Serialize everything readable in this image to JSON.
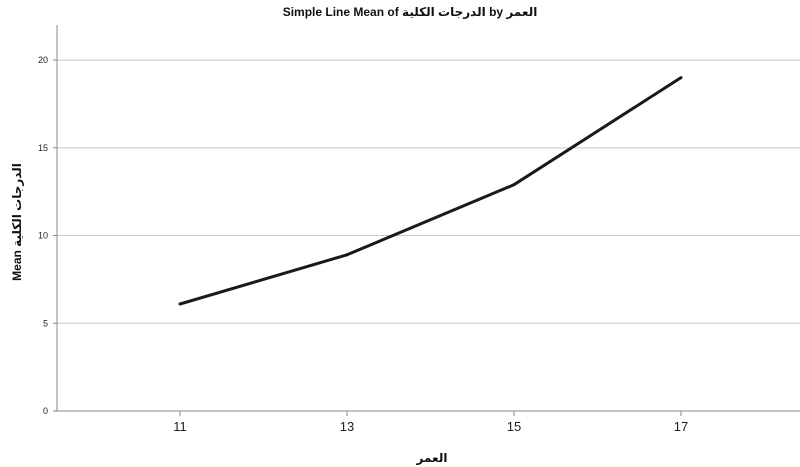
{
  "chart_data": {
    "type": "line",
    "title": "Simple Line Mean of الدرجات الكلية by العمر",
    "xlabel": "العمر",
    "ylabel": "Mean الدرجات الكلية",
    "categories": [
      "11",
      "13",
      "15",
      "17"
    ],
    "series": [
      {
        "values": [
          6.1,
          8.9,
          12.9,
          19.0
        ]
      }
    ],
    "ylim": [
      0,
      22
    ],
    "yticks": [
      0,
      5,
      10,
      15,
      20
    ],
    "grid": true,
    "line_color": "#1a1a1a",
    "grid_color": "#c8c8c8",
    "axis_color": "#888888"
  }
}
